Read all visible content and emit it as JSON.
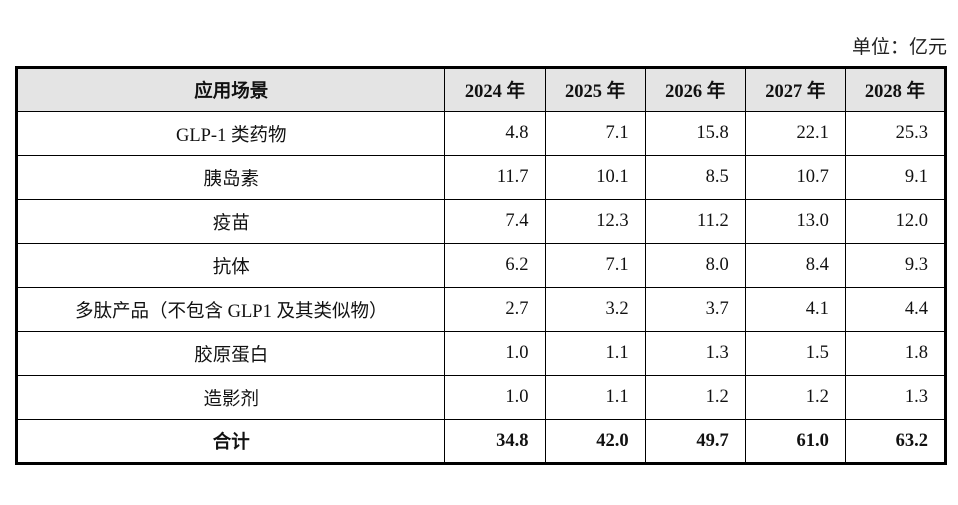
{
  "unit_label": "单位：亿元",
  "colors": {
    "header_bg": "#e4e4e4",
    "border": "#000000",
    "text": "#111111",
    "page_bg": "#ffffff"
  },
  "table": {
    "header": {
      "scenario_col": "应用场景",
      "years": [
        "2024 年",
        "2025 年",
        "2026 年",
        "2027 年",
        "2028 年"
      ]
    },
    "rows": [
      {
        "label": "GLP-1 类药物",
        "values": [
          "4.8",
          "7.1",
          "15.8",
          "22.1",
          "25.3"
        ]
      },
      {
        "label": "胰岛素",
        "values": [
          "11.7",
          "10.1",
          "8.5",
          "10.7",
          "9.1"
        ]
      },
      {
        "label": "疫苗",
        "values": [
          "7.4",
          "12.3",
          "11.2",
          "13.0",
          "12.0"
        ]
      },
      {
        "label": "抗体",
        "values": [
          "6.2",
          "7.1",
          "8.0",
          "8.4",
          "9.3"
        ]
      },
      {
        "label": "多肽产品（不包含 GLP1 及其类似物）",
        "values": [
          "2.7",
          "3.2",
          "3.7",
          "4.1",
          "4.4"
        ]
      },
      {
        "label": "胶原蛋白",
        "values": [
          "1.0",
          "1.1",
          "1.3",
          "1.5",
          "1.8"
        ]
      },
      {
        "label": "造影剂",
        "values": [
          "1.0",
          "1.1",
          "1.2",
          "1.2",
          "1.3"
        ]
      }
    ],
    "total_row": {
      "label": "合计",
      "values": [
        "34.8",
        "42.0",
        "49.7",
        "61.0",
        "63.2"
      ]
    }
  },
  "chart_data": {
    "type": "table",
    "title": "",
    "unit": "亿元",
    "categories": [
      "2024",
      "2025",
      "2026",
      "2027",
      "2028"
    ],
    "series": [
      {
        "name": "GLP-1 类药物",
        "values": [
          4.8,
          7.1,
          15.8,
          22.1,
          25.3
        ]
      },
      {
        "name": "胰岛素",
        "values": [
          11.7,
          10.1,
          8.5,
          10.7,
          9.1
        ]
      },
      {
        "name": "疫苗",
        "values": [
          7.4,
          12.3,
          11.2,
          13.0,
          12.0
        ]
      },
      {
        "name": "抗体",
        "values": [
          6.2,
          7.1,
          8.0,
          8.4,
          9.3
        ]
      },
      {
        "name": "多肽产品（不包含 GLP1 及其类似物）",
        "values": [
          2.7,
          3.2,
          3.7,
          4.1,
          4.4
        ]
      },
      {
        "name": "胶原蛋白",
        "values": [
          1.0,
          1.1,
          1.3,
          1.5,
          1.8
        ]
      },
      {
        "name": "造影剂",
        "values": [
          1.0,
          1.1,
          1.2,
          1.2,
          1.3
        ]
      },
      {
        "name": "合计",
        "values": [
          34.8,
          42.0,
          49.7,
          61.0,
          63.2
        ]
      }
    ]
  }
}
